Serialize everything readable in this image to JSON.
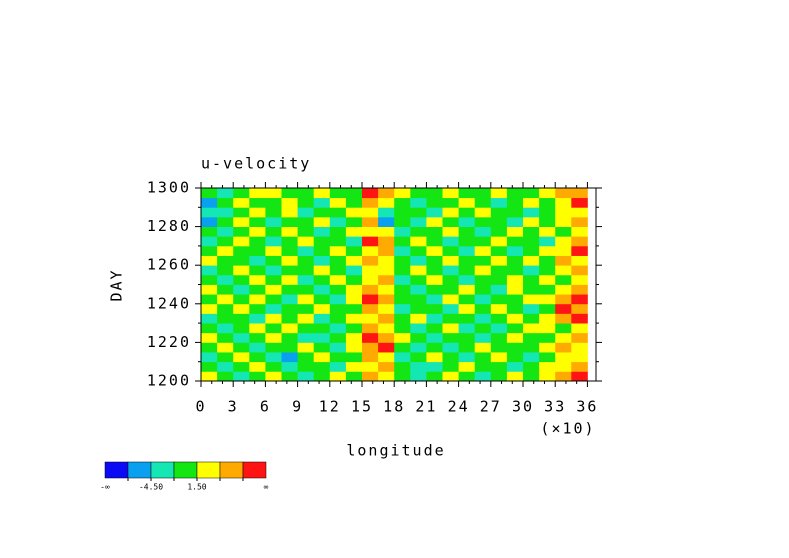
{
  "chart_data": {
    "type": "heatmap",
    "title": "u-velocity",
    "x_label": "longitude",
    "x_multiplier_label": "(×10)",
    "y_label": "DAY",
    "xlim": [
      0,
      36.8
    ],
    "ylim": [
      1200,
      1300
    ],
    "xticks": [
      0,
      3,
      6,
      9,
      12,
      15,
      18,
      21,
      24,
      27,
      30,
      33,
      36
    ],
    "xminorticks": [
      1,
      2,
      4,
      5,
      7,
      8,
      10,
      11,
      13,
      14,
      16,
      17,
      19,
      20,
      22,
      23,
      25,
      26,
      28,
      29,
      31,
      32,
      34,
      35
    ],
    "yticks": [
      1200,
      1220,
      1240,
      1260,
      1280,
      1300
    ],
    "yminorticks": [
      1210,
      1230,
      1250,
      1270,
      1290
    ],
    "x_edges": [
      0,
      1.5,
      3,
      4.5,
      6,
      7.5,
      9,
      10.5,
      12,
      13.5,
      15,
      16.5,
      18,
      19.5,
      21,
      22.5,
      24,
      25.5,
      27,
      28.5,
      30,
      31.5,
      33,
      34.5,
      36
    ],
    "y_edges": [
      1200,
      1205,
      1210,
      1215,
      1220,
      1225,
      1230,
      1235,
      1240,
      1245,
      1250,
      1255,
      1260,
      1265,
      1270,
      1275,
      1280,
      1285,
      1290,
      1295,
      1300
    ],
    "z": [
      [
        3,
        0,
        -3,
        0,
        3,
        0,
        -3,
        0,
        3,
        0,
        6,
        3,
        0,
        -3,
        0,
        3,
        0,
        -3,
        0,
        3,
        0,
        3,
        6,
        9
      ],
      [
        0,
        -3,
        0,
        3,
        0,
        -3,
        0,
        0,
        -3,
        3,
        3,
        6,
        0,
        -3,
        -3,
        0,
        3,
        0,
        0,
        -3,
        0,
        3,
        3,
        6
      ],
      [
        -3,
        0,
        3,
        0,
        -3,
        -6,
        0,
        3,
        0,
        0,
        6,
        3,
        -3,
        0,
        3,
        0,
        -3,
        0,
        3,
        0,
        -3,
        0,
        3,
        3
      ],
      [
        0,
        3,
        0,
        -3,
        0,
        0,
        3,
        0,
        -3,
        3,
        6,
        9,
        0,
        -3,
        0,
        -3,
        0,
        3,
        0,
        0,
        0,
        3,
        6,
        3
      ],
      [
        3,
        0,
        -3,
        0,
        3,
        0,
        -3,
        -3,
        0,
        3,
        9,
        6,
        3,
        0,
        -3,
        0,
        0,
        -3,
        0,
        3,
        0,
        0,
        3,
        6
      ],
      [
        0,
        -3,
        0,
        3,
        0,
        3,
        0,
        0,
        -3,
        0,
        6,
        3,
        0,
        -3,
        0,
        3,
        -3,
        0,
        -3,
        0,
        3,
        3,
        0,
        3
      ],
      [
        -3,
        0,
        0,
        -3,
        3,
        0,
        3,
        -3,
        0,
        3,
        3,
        6,
        0,
        3,
        -3,
        0,
        0,
        -3,
        0,
        3,
        0,
        3,
        6,
        9
      ],
      [
        3,
        0,
        3,
        0,
        -3,
        0,
        0,
        3,
        0,
        0,
        6,
        3,
        -3,
        0,
        0,
        -3,
        3,
        0,
        3,
        0,
        -3,
        0,
        9,
        6
      ],
      [
        0,
        3,
        0,
        3,
        0,
        -3,
        3,
        0,
        -3,
        3,
        9,
        6,
        0,
        0,
        -3,
        3,
        0,
        -3,
        0,
        0,
        3,
        3,
        6,
        9
      ],
      [
        3,
        0,
        -3,
        0,
        3,
        0,
        0,
        -3,
        0,
        3,
        6,
        3,
        0,
        -3,
        0,
        0,
        3,
        0,
        -3,
        3,
        0,
        0,
        3,
        6
      ],
      [
        0,
        -3,
        0,
        3,
        0,
        3,
        -3,
        0,
        3,
        0,
        3,
        6,
        -3,
        0,
        3,
        0,
        -3,
        0,
        0,
        3,
        0,
        3,
        0,
        3
      ],
      [
        -3,
        0,
        3,
        0,
        -3,
        0,
        0,
        3,
        0,
        -3,
        3,
        3,
        0,
        3,
        0,
        -3,
        0,
        3,
        0,
        0,
        -3,
        0,
        3,
        6
      ],
      [
        3,
        0,
        0,
        -3,
        0,
        3,
        0,
        -3,
        0,
        3,
        6,
        3,
        0,
        -3,
        0,
        3,
        0,
        0,
        3,
        0,
        3,
        0,
        6,
        3
      ],
      [
        0,
        3,
        0,
        0,
        3,
        0,
        -3,
        0,
        3,
        0,
        3,
        6,
        -3,
        0,
        3,
        0,
        -3,
        3,
        0,
        -3,
        0,
        3,
        3,
        9
      ],
      [
        -3,
        0,
        3,
        0,
        -3,
        0,
        3,
        0,
        0,
        -3,
        9,
        6,
        0,
        3,
        0,
        -3,
        0,
        0,
        3,
        0,
        0,
        -3,
        3,
        6
      ],
      [
        0,
        -3,
        0,
        3,
        0,
        3,
        0,
        -3,
        0,
        3,
        3,
        3,
        -3,
        0,
        0,
        3,
        0,
        -3,
        0,
        3,
        0,
        3,
        0,
        3
      ],
      [
        -6,
        0,
        3,
        0,
        -3,
        0,
        0,
        3,
        -3,
        0,
        6,
        -6,
        0,
        -3,
        3,
        0,
        -3,
        0,
        0,
        -3,
        3,
        0,
        3,
        6
      ],
      [
        -3,
        -3,
        0,
        3,
        0,
        3,
        -3,
        0,
        0,
        3,
        3,
        -3,
        0,
        0,
        -3,
        3,
        0,
        3,
        0,
        0,
        -3,
        0,
        3,
        3
      ],
      [
        -6,
        0,
        3,
        0,
        0,
        3,
        0,
        -3,
        3,
        0,
        6,
        3,
        0,
        -3,
        0,
        0,
        3,
        0,
        -3,
        0,
        3,
        0,
        3,
        9
      ],
      [
        0,
        -3,
        0,
        3,
        3,
        0,
        0,
        3,
        0,
        0,
        9,
        6,
        3,
        0,
        0,
        3,
        0,
        0,
        3,
        0,
        0,
        3,
        6,
        6
      ]
    ],
    "colorbar": {
      "boundaries": [
        -7.5,
        -4.5,
        -1.5,
        1.5,
        4.5,
        7.5
      ],
      "colors": [
        "#0a0af5",
        "#0aa0f0",
        "#14e6b4",
        "#14e614",
        "#ffff00",
        "#ffaa00",
        "#ff1414"
      ],
      "ticks": [
        {
          "value": -4.5,
          "label": "-4.50"
        },
        {
          "value": 1.5,
          "label": "1.50"
        }
      ],
      "min_label": "-∞",
      "max_label": "∞"
    }
  }
}
